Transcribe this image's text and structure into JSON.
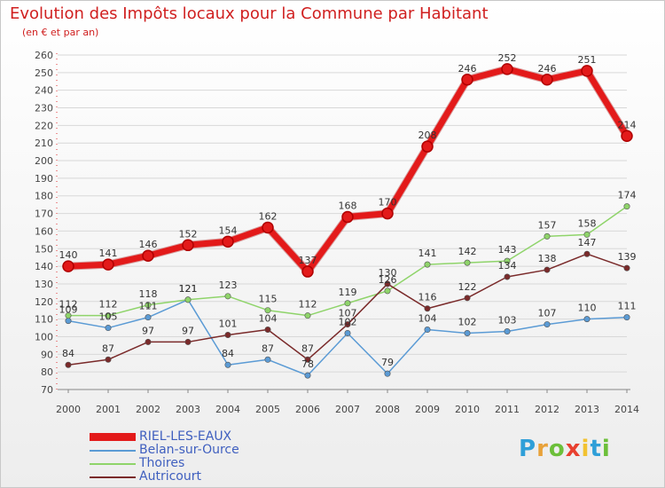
{
  "header": {
    "title": "Evolution des Impôts locaux pour la Commune par Habitant",
    "subtitle": "(en € et par an)"
  },
  "brand": {
    "letters": [
      "P",
      "r",
      "o",
      "x",
      "i",
      "t",
      "i"
    ],
    "colors": [
      "#2f9fd8",
      "#e8a23a",
      "#6cbf3a",
      "#e8402f",
      "#f2c230",
      "#2f9fd8",
      "#6cbf3a"
    ]
  },
  "chart_data": {
    "type": "line",
    "title": "Evolution des Impôts locaux pour la Commune par Habitant",
    "subtitle": "(en € et par an)",
    "xlabel": "",
    "ylabel": "",
    "x": [
      "2000",
      "2001",
      "2002",
      "2003",
      "2004",
      "2005",
      "2006",
      "2007",
      "2008",
      "2009",
      "2010",
      "2011",
      "2012",
      "2013",
      "2014"
    ],
    "ylim": [
      70,
      260
    ],
    "yticks": [
      70,
      80,
      90,
      100,
      110,
      120,
      130,
      140,
      150,
      160,
      170,
      180,
      190,
      200,
      210,
      220,
      230,
      240,
      250,
      260
    ],
    "grid": true,
    "legend_position": "bottom-left",
    "series": [
      {
        "name": "RIEL-LES-EAUX",
        "color": "#e31a1a",
        "values": [
          140,
          141,
          146,
          152,
          154,
          162,
          137,
          168,
          170,
          208,
          246,
          252,
          246,
          251,
          214
        ],
        "labels": [
          "140",
          "141",
          "146",
          "152",
          "154",
          "162",
          "137",
          "168",
          "170",
          "208",
          "246",
          "252",
          "246",
          "251",
          "214"
        ],
        "highlight": true
      },
      {
        "name": "Belan-sur-Ource",
        "color": "#5b9bd5",
        "values": [
          109,
          105,
          111,
          121,
          84,
          87,
          78,
          102,
          79,
          104,
          102,
          103,
          107,
          110,
          111
        ],
        "labels": [
          "109",
          "105",
          "111",
          "121",
          "84",
          "87",
          "78",
          "102",
          "79",
          "104",
          "102",
          "103",
          "107",
          "110",
          "111"
        ]
      },
      {
        "name": "Thoires",
        "color": "#8fd46a",
        "values": [
          112,
          112,
          118,
          121,
          123,
          115,
          112,
          119,
          126,
          141,
          142,
          143,
          157,
          158,
          174
        ],
        "labels": [
          "112",
          "112",
          "118",
          "121",
          "123",
          "115",
          "112",
          "119",
          "126",
          "141",
          "142",
          "143",
          "157",
          "158",
          "174"
        ]
      },
      {
        "name": "Autricourt",
        "color": "#7a2a2a",
        "values": [
          84,
          87,
          97,
          97,
          101,
          104,
          87,
          107,
          130,
          116,
          122,
          134,
          138,
          147,
          139
        ],
        "labels": [
          "84",
          "87",
          "97",
          "97",
          "101",
          "104",
          "87",
          "107",
          "130",
          "116",
          "122",
          "134",
          "138",
          "147",
          "139"
        ]
      }
    ]
  }
}
